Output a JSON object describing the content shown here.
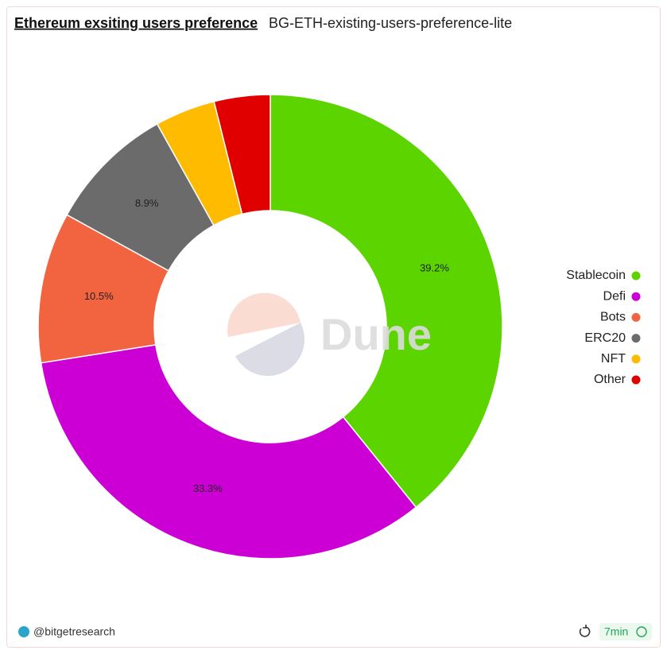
{
  "header": {
    "title": "Ethereum exsiting users preference",
    "query": "BG-ETH-existing-users-preference-lite"
  },
  "chart_data": {
    "type": "pie",
    "categories": [
      "Stablecoin",
      "Defi",
      "Bots",
      "ERC20",
      "NFT",
      "Other"
    ],
    "values": [
      39.2,
      33.3,
      10.5,
      8.9,
      4.2,
      3.9
    ],
    "value_labels": [
      "39.2%",
      "33.3%",
      "10.5%",
      "8.9%",
      null,
      null
    ],
    "colors": [
      "#5bd400",
      "#cc00d4",
      "#f26440",
      "#6b6b6b",
      "#ffbb00",
      "#e00000"
    ],
    "legend": "right"
  },
  "watermark": "Dune",
  "footer": {
    "author": "@bitgetresearch",
    "refresh": "7min"
  }
}
